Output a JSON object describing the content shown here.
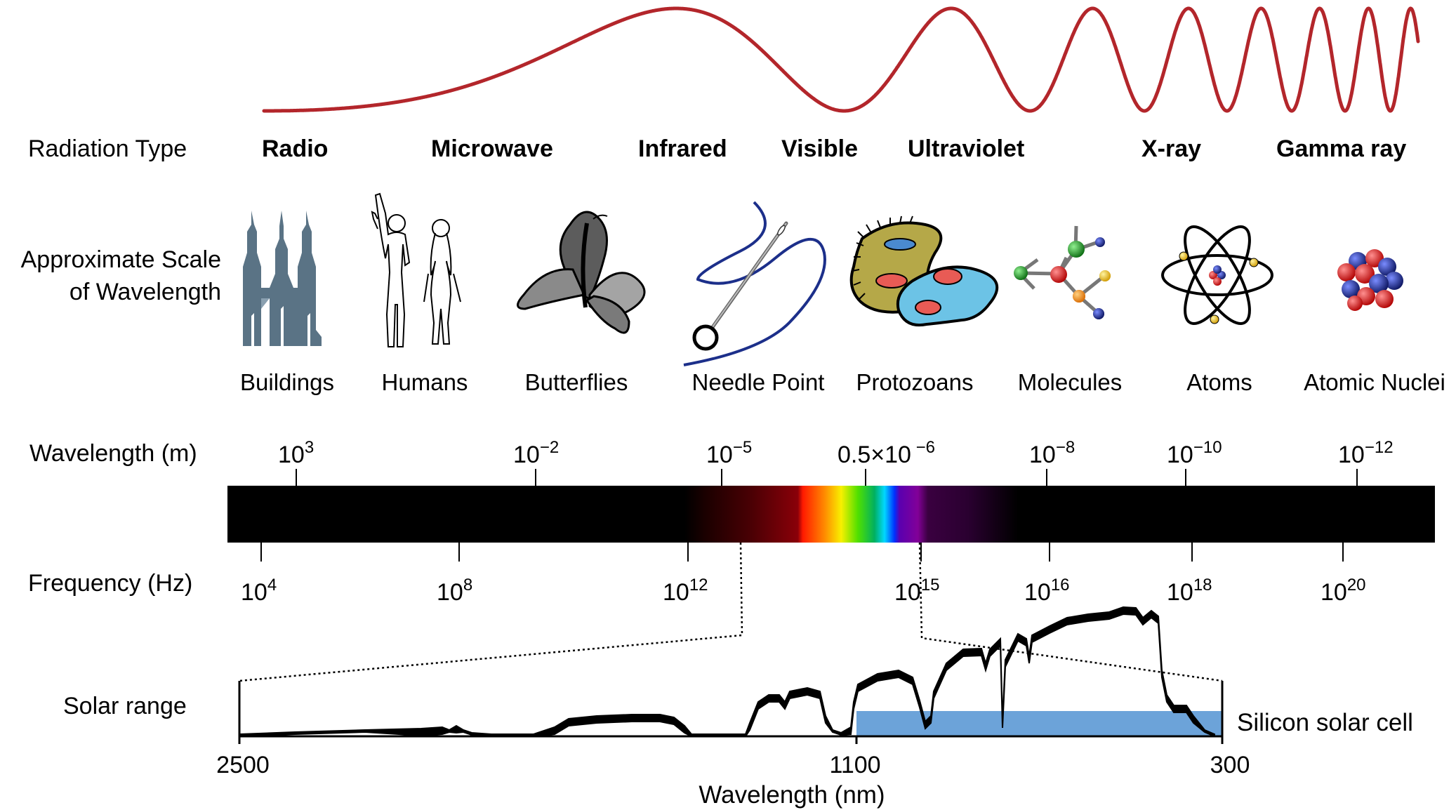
{
  "colors": {
    "wave": "#b3262b",
    "solar_cell": "#6ca3d9",
    "building": "#5a7385",
    "needle_thread": "#1c2f8a",
    "spectrum_bar": "#000000"
  },
  "wave": {
    "description_icon": "sine-wave-increasing-frequency"
  },
  "rows": {
    "radiation_type": "Radiation Type",
    "scale_line1": "Approximate Scale",
    "scale_line2": "of Wavelength",
    "wavelength_m": "Wavelength (m)",
    "frequency_hz": "Frequency (Hz)",
    "solar_range": "Solar range"
  },
  "radiation_types": [
    "Radio",
    "Microwave",
    "Infrared",
    "Visible",
    "Ultraviolet",
    "X-ray",
    "Gamma ray"
  ],
  "scale_objects": [
    {
      "label": "Buildings",
      "icon": "buildings-icon"
    },
    {
      "label": "Humans",
      "icon": "humans-icon"
    },
    {
      "label": "Butterflies",
      "icon": "butterfly-icon"
    },
    {
      "label": "Needle Point",
      "icon": "needle-icon"
    },
    {
      "label": "Protozoans",
      "icon": "protozoa-icon"
    },
    {
      "label": "Molecules",
      "icon": "molecule-icon"
    },
    {
      "label": "Atoms",
      "icon": "atom-icon"
    },
    {
      "label": "Atomic Nuclei",
      "icon": "nucleus-icon"
    }
  ],
  "wavelength_ticks": [
    {
      "base": "10",
      "exp": "3"
    },
    {
      "base": "10",
      "exp": "−2"
    },
    {
      "base": "10",
      "exp": "−5"
    },
    {
      "base": "0.5×10",
      "exp": " −6"
    },
    {
      "base": "10",
      "exp": "−8"
    },
    {
      "base": "10",
      "exp": "−10"
    },
    {
      "base": "10",
      "exp": "−12"
    }
  ],
  "frequency_ticks": [
    {
      "base": "10",
      "exp": "4"
    },
    {
      "base": "10",
      "exp": "8"
    },
    {
      "base": "10",
      "exp": "12"
    },
    {
      "base": "10",
      "exp": "15"
    },
    {
      "base": "10",
      "exp": "16"
    },
    {
      "base": "10",
      "exp": "18"
    },
    {
      "base": "10",
      "exp": "20"
    }
  ],
  "solar": {
    "x_ticks": [
      "2500",
      "1100",
      "300"
    ],
    "x_label": "Wavelength (nm)",
    "silicon_label": "Silicon solar cell"
  }
}
